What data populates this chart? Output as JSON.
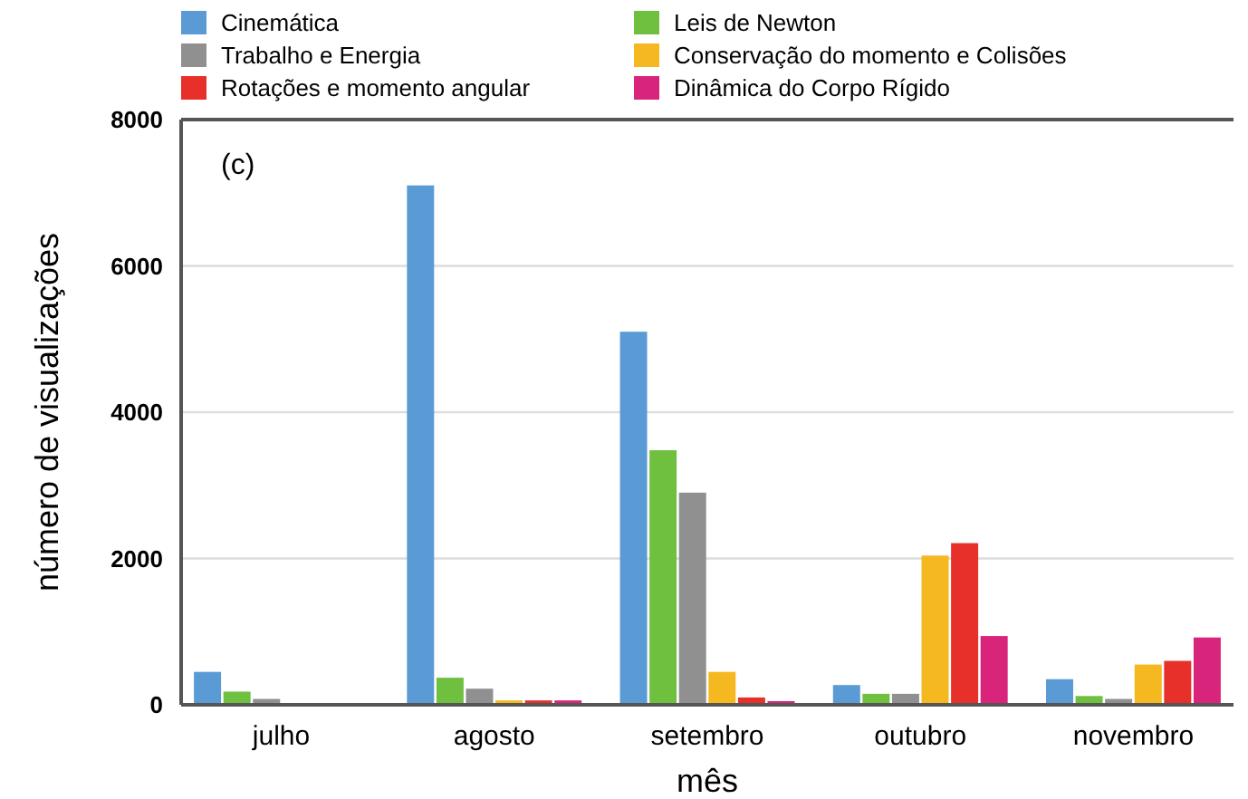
{
  "chart_data": {
    "type": "bar",
    "xlabel": "mês",
    "ylabel": "número de visualizações",
    "annotations": [
      "(c)"
    ],
    "categories": [
      "julho",
      "agosto",
      "setembro",
      "outubro",
      "novembro"
    ],
    "series": [
      {
        "name": "Cinemática",
        "color": "#5b9bd5",
        "values": [
          450,
          7100,
          5100,
          270,
          350
        ]
      },
      {
        "name": "Leis de Newton",
        "color": "#70c040",
        "values": [
          180,
          370,
          3480,
          150,
          120
        ]
      },
      {
        "name": "Trabalho e Energia",
        "color": "#909090",
        "values": [
          80,
          220,
          2900,
          150,
          80
        ]
      },
      {
        "name": "Conservação do momento e  Colisões",
        "color": "#f5b820",
        "values": [
          0,
          60,
          450,
          2040,
          550
        ]
      },
      {
        "name": "Rotações e momento angular",
        "color": "#e8302a",
        "values": [
          0,
          60,
          100,
          2210,
          600
        ]
      },
      {
        "name": "Dinâmica do Corpo Rígido",
        "color": "#d8247a",
        "values": [
          0,
          60,
          50,
          940,
          920
        ]
      }
    ],
    "ylim": [
      0,
      8000
    ],
    "yticks": [
      0,
      2000,
      4000,
      6000,
      8000
    ],
    "grid": "y",
    "legend": "top"
  }
}
